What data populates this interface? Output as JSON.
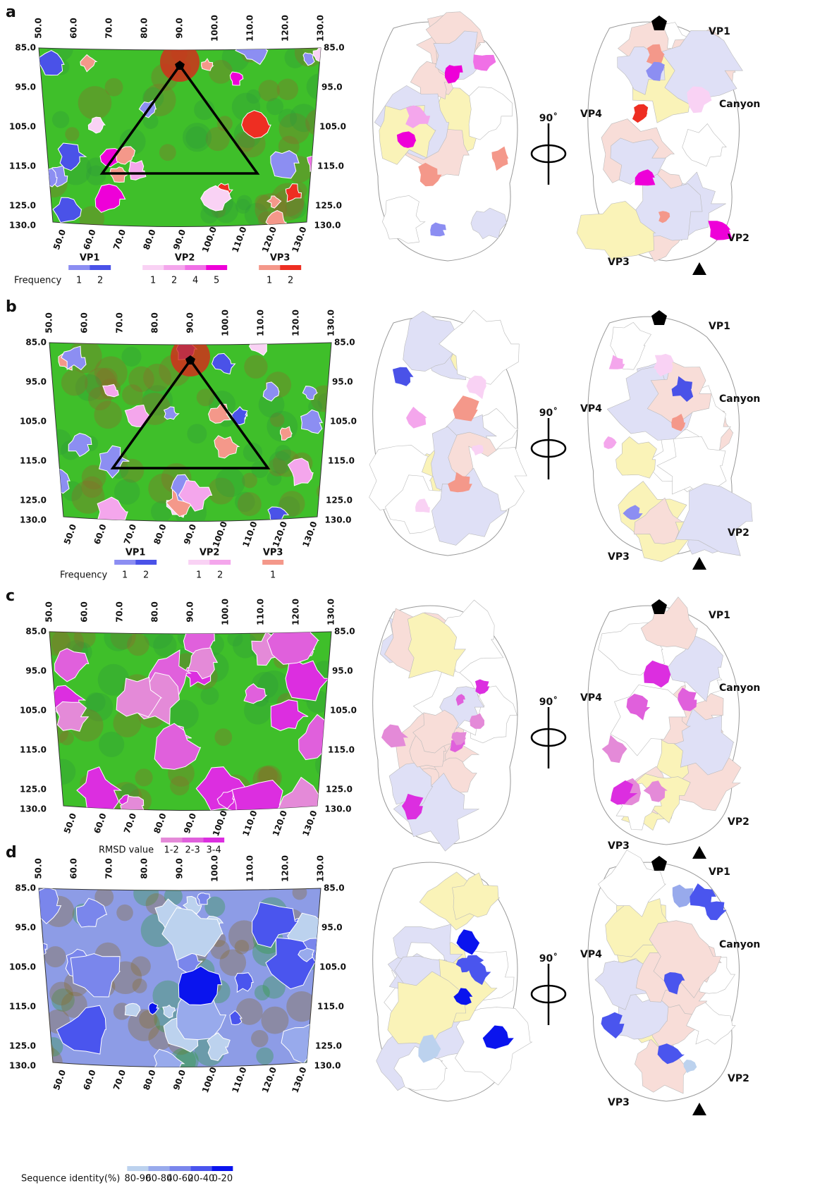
{
  "panels": [
    {
      "label": "a",
      "roadmap": {
        "top_ticks": [
          "50.0",
          "60.0",
          "70.0",
          "80.0",
          "90.0",
          "100.0",
          "110.0",
          "120.0",
          "130.0"
        ],
        "bottom_ticks": [
          "50.0",
          "60.0",
          "70.0",
          "80.0",
          "90.0",
          "100.0",
          "110.0",
          "120.0",
          "130.0"
        ],
        "left_ticks": [
          "85.0",
          "95.0",
          "105.0",
          "115.0",
          "125.0",
          "130.0"
        ],
        "right_ticks": [
          "85.0",
          "95.0",
          "105.0",
          "115.0",
          "125.0",
          "130.0"
        ],
        "background": "#3fbf2a",
        "triangle": true
      },
      "legend": {
        "title": "Frequency",
        "groups": [
          {
            "name": "VP1",
            "items": [
              {
                "label": "1",
                "color": "#8c8ef2"
              },
              {
                "label": "2",
                "color": "#4a52e8"
              }
            ]
          },
          {
            "name": "VP2",
            "items": [
              {
                "label": "1",
                "color": "#f9d2f4"
              },
              {
                "label": "2",
                "color": "#f4a6ec"
              },
              {
                "label": "4",
                "color": "#f070e6"
              },
              {
                "label": "5",
                "color": "#ee00d8"
              }
            ]
          },
          {
            "name": "VP3",
            "items": [
              {
                "label": "1",
                "color": "#f4988a"
              },
              {
                "label": "2",
                "color": "#ee2e22"
              }
            ]
          }
        ]
      },
      "structure_labels": {
        "vp1": "VP1",
        "canyon": "Canyon",
        "vp4": "VP4",
        "vp2": "VP2",
        "vp3": "VP3",
        "rotation": "90˚"
      }
    },
    {
      "label": "b",
      "roadmap": {
        "top_ticks": [
          "50.0",
          "60.0",
          "70.0",
          "80.0",
          "90.0",
          "100.0",
          "110.0",
          "120.0",
          "130.0"
        ],
        "bottom_ticks": [
          "50.0",
          "60.0",
          "70.0",
          "80.0",
          "90.0",
          "100.0",
          "110.0",
          "120.0",
          "130.0"
        ],
        "left_ticks": [
          "85.0",
          "95.0",
          "105.0",
          "115.0",
          "125.0",
          "130.0"
        ],
        "right_ticks": [
          "85.0",
          "95.0",
          "105.0",
          "115.0",
          "125.0",
          "130.0"
        ],
        "background": "#3fbf2a",
        "triangle": true
      },
      "legend": {
        "title": "Frequency",
        "groups": [
          {
            "name": "VP1",
            "items": [
              {
                "label": "1",
                "color": "#8c8ef2"
              },
              {
                "label": "2",
                "color": "#4a52e8"
              }
            ]
          },
          {
            "name": "VP2",
            "items": [
              {
                "label": "1",
                "color": "#f9d2f4"
              },
              {
                "label": "2",
                "color": "#f4a6ec"
              }
            ]
          },
          {
            "name": "VP3",
            "items": [
              {
                "label": "1",
                "color": "#f4988a"
              }
            ]
          }
        ]
      },
      "structure_labels": {
        "vp1": "VP1",
        "canyon": "Canyon",
        "vp4": "VP4",
        "vp2": "VP2",
        "vp3": "VP3",
        "rotation": "90˚"
      }
    },
    {
      "label": "c",
      "roadmap": {
        "top_ticks": [
          "50.0",
          "60.0",
          "70.0",
          "80.0",
          "90.0",
          "100.0",
          "110.0",
          "120.0",
          "130.0"
        ],
        "bottom_ticks": [
          "50.0",
          "60.0",
          "70.0",
          "80.0",
          "90.0",
          "100.0",
          "110.0",
          "120.0",
          "130.0"
        ],
        "left_ticks": [
          "85.0",
          "95.0",
          "105.0",
          "115.0",
          "125.0",
          "130.0"
        ],
        "right_ticks": [
          "85.0",
          "95.0",
          "105.0",
          "115.0",
          "125.0",
          "130.0"
        ],
        "background": "#3fbf2a",
        "triangle": false
      },
      "legend": {
        "title": "RMSD value",
        "groups": [
          {
            "items": [
              {
                "label": "1-2",
                "color": "#e48ad8"
              },
              {
                "label": "2-3",
                "color": "#e060dc"
              },
              {
                "label": "3-4",
                "color": "#dc2ee0"
              }
            ]
          }
        ]
      },
      "structure_labels": {
        "vp1": "VP1",
        "canyon": "Canyon",
        "vp4": "VP4",
        "vp2": "VP2",
        "vp3": "VP3",
        "rotation": "90˚"
      }
    },
    {
      "label": "d",
      "roadmap": {
        "top_ticks": [
          "50.0",
          "60.0",
          "70.0",
          "80.0",
          "90.0",
          "100.0",
          "110.0",
          "120.0",
          "130.0"
        ],
        "bottom_ticks": [
          "50.0",
          "60.0",
          "70.0",
          "80.0",
          "90.0",
          "100.0",
          "110.0",
          "120.0",
          "130.0"
        ],
        "left_ticks": [
          "85.0",
          "95.0",
          "105.0",
          "115.0",
          "125.0",
          "130.0"
        ],
        "right_ticks": [
          "85.0",
          "95.0",
          "105.0",
          "115.0",
          "125.0",
          "130.0"
        ],
        "background": "#8d9ce6",
        "triangle": false
      },
      "legend": {
        "title": "Sequence identity(%)",
        "groups": [
          {
            "items": [
              {
                "label": "80-90",
                "color": "#bcd2ee"
              },
              {
                "label": "60-80",
                "color": "#98aaec"
              },
              {
                "label": "40-60",
                "color": "#7a86ec"
              },
              {
                "label": "20-40",
                "color": "#4a55ee"
              },
              {
                "label": "0-20",
                "color": "#0a14ee"
              }
            ]
          }
        ]
      },
      "structure_labels": {
        "vp1": "VP1",
        "canyon": "Canyon",
        "vp4": "VP4",
        "vp2": "VP2",
        "vp3": "VP3",
        "rotation": "90˚"
      }
    }
  ]
}
